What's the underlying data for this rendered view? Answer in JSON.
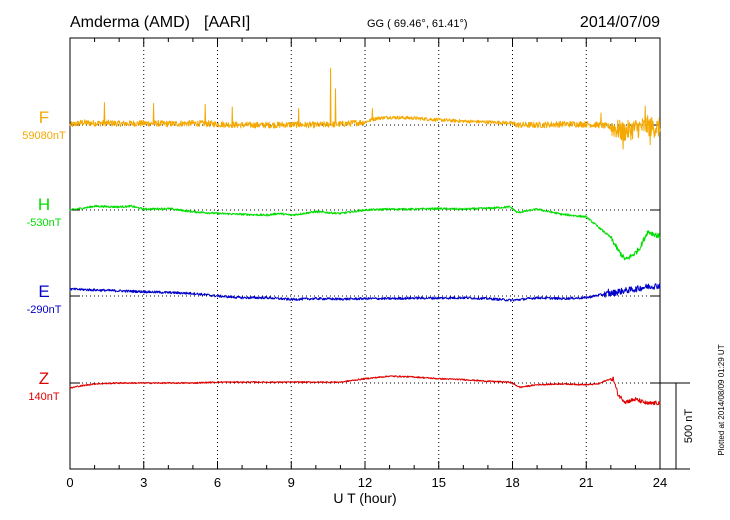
{
  "header": {
    "station": "Amderma (AMD)",
    "network": "[AARI]",
    "coords": "GG ( 69.46°,  61.41°)",
    "date": "2014/07/09"
  },
  "footer": {
    "plotted": "Plotted at 2014/08/09 01:29 UT"
  },
  "colors": {
    "F": "#f5a800",
    "H": "#00dd00",
    "E": "#0000cc",
    "Z": "#e00000",
    "axis": "#000000"
  },
  "chart_data": {
    "type": "line",
    "title": "Amderma (AMD)  [AARI]",
    "xlabel": "U T (hour)",
    "ylabel": "",
    "xlim": [
      0,
      24
    ],
    "x_ticks": [
      0,
      3,
      6,
      9,
      12,
      15,
      18,
      21,
      24
    ],
    "x_tick_labels": [
      "0",
      "3",
      "6",
      "9",
      "12",
      "15",
      "18",
      "21",
      "24"
    ],
    "grid": "vertical dotted at every 3 hours; horizontal dotted baseline per component",
    "scale_bar": {
      "label": "500 nT",
      "value_nT": 500
    },
    "units": "nT (deviation from baseline, estimated from 500 nT scale bar)",
    "series": [
      {
        "name": "F",
        "baseline_label": "59080nT",
        "baseline_nT": 59080,
        "color": "#f5a800",
        "noise_nT": 18,
        "spikes": [
          [
            1.4,
            130
          ],
          [
            3.4,
            125
          ],
          [
            5.5,
            120
          ],
          [
            6.6,
            105
          ],
          [
            9.3,
            95
          ],
          [
            10.6,
            330
          ],
          [
            10.8,
            210
          ],
          [
            12.3,
            95
          ],
          [
            21.6,
            70
          ],
          [
            22.5,
            -140
          ],
          [
            23.4,
            110
          ],
          [
            23.6,
            -115
          ]
        ],
        "points": [
          [
            0,
            0
          ],
          [
            0.5,
            14
          ],
          [
            1,
            10
          ],
          [
            1.5,
            12
          ],
          [
            2,
            8
          ],
          [
            3,
            10
          ],
          [
            4,
            7
          ],
          [
            5,
            10
          ],
          [
            6,
            5
          ],
          [
            7,
            0
          ],
          [
            8,
            0
          ],
          [
            9,
            2
          ],
          [
            10,
            0
          ],
          [
            11,
            5
          ],
          [
            12,
            17
          ],
          [
            12.5,
            40
          ],
          [
            13,
            45
          ],
          [
            14,
            40
          ],
          [
            15,
            30
          ],
          [
            16,
            22
          ],
          [
            17,
            17
          ],
          [
            17.9,
            12
          ],
          [
            18.2,
            0
          ],
          [
            19,
            0
          ],
          [
            20,
            5
          ],
          [
            21,
            5
          ],
          [
            21.5,
            0
          ],
          [
            22,
            -10
          ],
          [
            22.5,
            -40
          ],
          [
            23,
            -20
          ],
          [
            23.5,
            -5
          ],
          [
            24,
            -20
          ]
        ]
      },
      {
        "name": "H",
        "baseline_label": "-530nT",
        "baseline_nT": -530,
        "color": "#00dd00",
        "noise_nT": 6,
        "spikes": [],
        "points": [
          [
            0,
            0
          ],
          [
            0.5,
            10
          ],
          [
            1,
            22
          ],
          [
            1.5,
            20
          ],
          [
            2,
            18
          ],
          [
            2.5,
            22
          ],
          [
            3,
            5
          ],
          [
            4,
            8
          ],
          [
            5,
            -10
          ],
          [
            6,
            -20
          ],
          [
            7,
            -25
          ],
          [
            8,
            -30
          ],
          [
            8.5,
            -20
          ],
          [
            9,
            -30
          ],
          [
            10,
            -10
          ],
          [
            11,
            -20
          ],
          [
            12,
            0
          ],
          [
            13,
            5
          ],
          [
            14,
            5
          ],
          [
            15,
            8
          ],
          [
            16,
            5
          ],
          [
            17,
            10
          ],
          [
            17.9,
            18
          ],
          [
            18.2,
            -15
          ],
          [
            19,
            5
          ],
          [
            20,
            -25
          ],
          [
            21,
            -40
          ],
          [
            21.5,
            -100
          ],
          [
            22,
            -160
          ],
          [
            22.3,
            -235
          ],
          [
            22.6,
            -290
          ],
          [
            23,
            -250
          ],
          [
            23.2,
            -215
          ],
          [
            23.5,
            -125
          ],
          [
            24,
            -155
          ]
        ]
      },
      {
        "name": "E",
        "baseline_label": "-290nT",
        "baseline_nT": -290,
        "color": "#0000cc",
        "noise_nT": 7,
        "spikes": [
          [
            21.9,
            40
          ],
          [
            22.3,
            40
          ]
        ],
        "points": [
          [
            0,
            40
          ],
          [
            1,
            35
          ],
          [
            2,
            30
          ],
          [
            3,
            25
          ],
          [
            4,
            20
          ],
          [
            5,
            15
          ],
          [
            6,
            0
          ],
          [
            7,
            -10
          ],
          [
            8,
            -10
          ],
          [
            9,
            -20
          ],
          [
            10,
            -15
          ],
          [
            11,
            -18
          ],
          [
            12,
            -15
          ],
          [
            13,
            -15
          ],
          [
            14,
            -12
          ],
          [
            15,
            -12
          ],
          [
            16,
            -10
          ],
          [
            17,
            -15
          ],
          [
            18,
            -25
          ],
          [
            19,
            -10
          ],
          [
            20,
            -15
          ],
          [
            21,
            -10
          ],
          [
            21.5,
            5
          ],
          [
            22,
            15
          ],
          [
            22.5,
            30
          ],
          [
            23,
            40
          ],
          [
            23.5,
            55
          ],
          [
            24,
            60
          ]
        ]
      },
      {
        "name": "Z",
        "baseline_label": "140nT",
        "baseline_nT": 140,
        "color": "#e00000",
        "noise_nT": 4,
        "spikes": [],
        "points": [
          [
            0,
            -30
          ],
          [
            0.3,
            -20
          ],
          [
            1,
            -5
          ],
          [
            2,
            0
          ],
          [
            3,
            0
          ],
          [
            4,
            0
          ],
          [
            5,
            0
          ],
          [
            6,
            5
          ],
          [
            7,
            5
          ],
          [
            8,
            5
          ],
          [
            9,
            5
          ],
          [
            10,
            5
          ],
          [
            11,
            5
          ],
          [
            12,
            25
          ],
          [
            13,
            40
          ],
          [
            14,
            35
          ],
          [
            15,
            25
          ],
          [
            16,
            20
          ],
          [
            17,
            10
          ],
          [
            17.9,
            5
          ],
          [
            18.3,
            -25
          ],
          [
            19,
            -10
          ],
          [
            20,
            -5
          ],
          [
            21,
            -10
          ],
          [
            21.5,
            -5
          ],
          [
            21.9,
            20
          ],
          [
            22.1,
            25
          ],
          [
            22.3,
            -70
          ],
          [
            22.6,
            -110
          ],
          [
            23,
            -95
          ],
          [
            23.5,
            -120
          ],
          [
            24,
            -115
          ]
        ]
      }
    ]
  }
}
